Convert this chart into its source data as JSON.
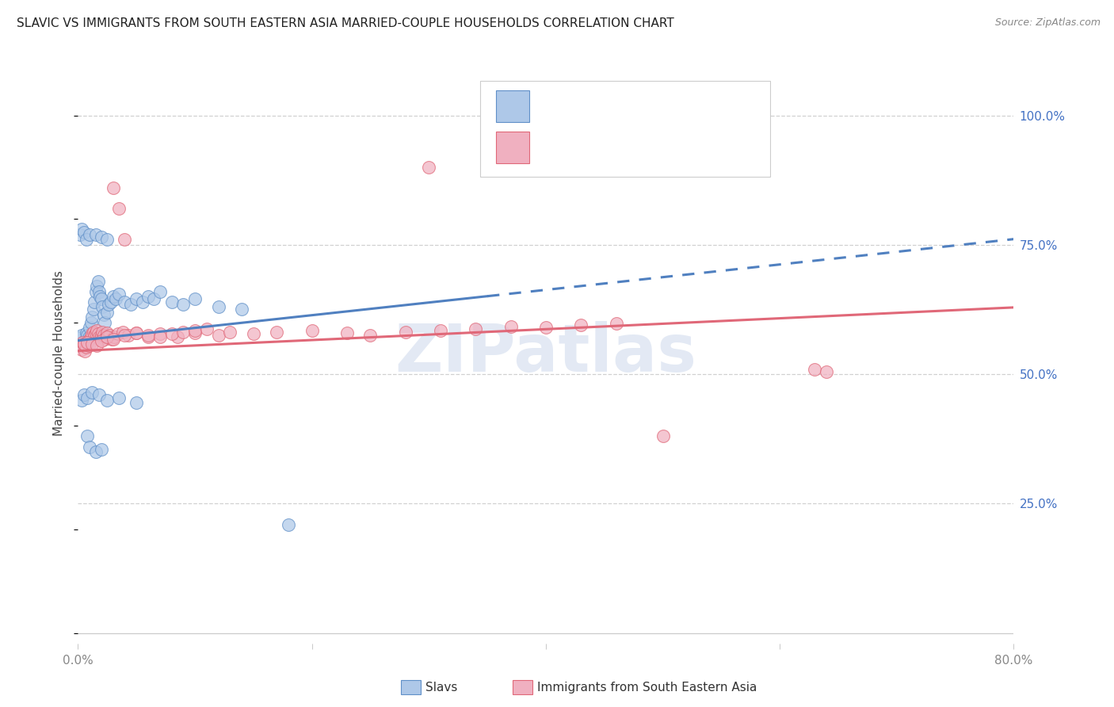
{
  "title": "SLAVIC VS IMMIGRANTS FROM SOUTH EASTERN ASIA MARRIED-COUPLE HOUSEHOLDS CORRELATION CHART",
  "source": "Source: ZipAtlas.com",
  "ylabel": "Married-couple Households",
  "xlim": [
    0.0,
    0.8
  ],
  "ylim": [
    -0.02,
    1.1
  ],
  "yticks": [
    0.25,
    0.5,
    0.75,
    1.0
  ],
  "ytick_labels": [
    "25.0%",
    "50.0%",
    "75.0%",
    "100.0%"
  ],
  "xticks": [
    0.0,
    0.2,
    0.4,
    0.6,
    0.8
  ],
  "xtick_labels": [
    "0.0%",
    "",
    "",
    "",
    "80.0%"
  ],
  "label_slavs": "Slavs",
  "label_sea": "Immigrants from South Eastern Asia",
  "color_slavs_fill": "#aec8e8",
  "color_slavs_edge": "#6090c8",
  "color_sea_fill": "#f0b0c0",
  "color_sea_edge": "#e06878",
  "color_slavs_line": "#5080c0",
  "color_sea_line": "#e06878",
  "watermark": "ZIPatlas",
  "watermark_color": "#ccd8ec",
  "grid_color": "#cccccc",
  "title_color": "#222222",
  "source_color": "#888888",
  "ytick_color": "#4472c4",
  "xtick_color": "#888888",
  "slavs_line_intercept": 0.565,
  "slavs_line_slope": 0.245,
  "sea_line_intercept": 0.545,
  "sea_line_slope": 0.105,
  "slavs_x": [
    0.002,
    0.003,
    0.004,
    0.005,
    0.006,
    0.007,
    0.008,
    0.009,
    0.01,
    0.011,
    0.012,
    0.013,
    0.014,
    0.015,
    0.016,
    0.017,
    0.018,
    0.019,
    0.02,
    0.021,
    0.022,
    0.023,
    0.025,
    0.026,
    0.028,
    0.03,
    0.032,
    0.035,
    0.04,
    0.045,
    0.05,
    0.055,
    0.06,
    0.065,
    0.07,
    0.08,
    0.09,
    0.1,
    0.12,
    0.14,
    0.002,
    0.003,
    0.005,
    0.007,
    0.01,
    0.015,
    0.02,
    0.025,
    0.003,
    0.005,
    0.008,
    0.012,
    0.018,
    0.025,
    0.035,
    0.05,
    0.008,
    0.01,
    0.015,
    0.02,
    0.18
  ],
  "slavs_y": [
    0.57,
    0.575,
    0.56,
    0.555,
    0.565,
    0.58,
    0.575,
    0.57,
    0.59,
    0.6,
    0.61,
    0.625,
    0.64,
    0.66,
    0.67,
    0.68,
    0.66,
    0.65,
    0.645,
    0.63,
    0.615,
    0.6,
    0.62,
    0.635,
    0.64,
    0.65,
    0.645,
    0.655,
    0.64,
    0.635,
    0.645,
    0.64,
    0.65,
    0.645,
    0.66,
    0.64,
    0.635,
    0.645,
    0.63,
    0.625,
    0.77,
    0.78,
    0.775,
    0.76,
    0.77,
    0.77,
    0.765,
    0.76,
    0.45,
    0.46,
    0.455,
    0.465,
    0.46,
    0.45,
    0.455,
    0.445,
    0.38,
    0.36,
    0.35,
    0.355,
    0.21
  ],
  "sea_x": [
    0.002,
    0.003,
    0.004,
    0.005,
    0.006,
    0.007,
    0.008,
    0.009,
    0.01,
    0.011,
    0.012,
    0.013,
    0.014,
    0.015,
    0.016,
    0.017,
    0.018,
    0.019,
    0.02,
    0.021,
    0.022,
    0.023,
    0.024,
    0.025,
    0.027,
    0.029,
    0.031,
    0.034,
    0.038,
    0.043,
    0.05,
    0.06,
    0.07,
    0.085,
    0.1,
    0.12,
    0.005,
    0.008,
    0.012,
    0.016,
    0.02,
    0.025,
    0.03,
    0.04,
    0.05,
    0.06,
    0.07,
    0.08,
    0.09,
    0.1,
    0.11,
    0.13,
    0.15,
    0.17,
    0.2,
    0.23,
    0.25,
    0.28,
    0.31,
    0.34,
    0.37,
    0.4,
    0.43,
    0.46,
    0.03,
    0.035,
    0.04,
    0.3,
    0.5,
    0.63,
    0.64
  ],
  "sea_y": [
    0.555,
    0.548,
    0.562,
    0.558,
    0.545,
    0.552,
    0.56,
    0.555,
    0.568,
    0.572,
    0.578,
    0.582,
    0.575,
    0.58,
    0.585,
    0.578,
    0.572,
    0.568,
    0.575,
    0.582,
    0.575,
    0.568,
    0.572,
    0.58,
    0.575,
    0.568,
    0.572,
    0.578,
    0.582,
    0.575,
    0.58,
    0.572,
    0.578,
    0.572,
    0.58,
    0.575,
    0.558,
    0.562,
    0.558,
    0.555,
    0.565,
    0.572,
    0.568,
    0.575,
    0.58,
    0.575,
    0.572,
    0.578,
    0.582,
    0.585,
    0.588,
    0.582,
    0.578,
    0.582,
    0.585,
    0.58,
    0.575,
    0.582,
    0.585,
    0.588,
    0.592,
    0.59,
    0.595,
    0.598,
    0.86,
    0.82,
    0.76,
    0.9,
    0.38,
    0.51,
    0.505
  ]
}
